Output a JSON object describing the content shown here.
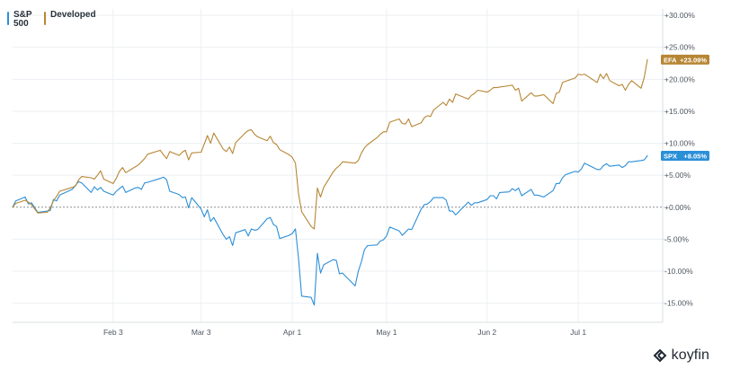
{
  "legend": {
    "spx_label": "S&P 500",
    "efa_label": "Developed"
  },
  "brand": {
    "name": "koyfin"
  },
  "colors": {
    "spx": "#2b8fd8",
    "efa": "#b78634",
    "grid": "#eceff2",
    "axis": "#d9dde2",
    "zero": "#8c8f93",
    "text": "#4d5661"
  },
  "chart_data": {
    "type": "line",
    "title": "",
    "xlabel": "",
    "ylabel": "",
    "x_ticks": [
      "Feb 3",
      "Mar 3",
      "Apr 1",
      "May 1",
      "Jun 2",
      "Jul 1"
    ],
    "y_ticks": [
      "+30.00%",
      "+25.00%",
      "+20.00%",
      "+15.00%",
      "+10.00%",
      "+5.00%",
      "+0.00%",
      "-5.00%",
      "-10.00%",
      "-15.00%"
    ],
    "ylim": [
      -18,
      31
    ],
    "grid": true,
    "legend": "top-left",
    "series": [
      {
        "name": "S&P 500",
        "tag": "SPX",
        "end_label": "+8.05%",
        "color": "#2b8fd8",
        "points": [
          [
            "2025-01-02",
            0.0
          ],
          [
            "2025-01-03",
            1.0
          ],
          [
            "2025-01-06",
            1.6
          ],
          [
            "2025-01-07",
            0.5
          ],
          [
            "2025-01-08",
            0.7
          ],
          [
            "2025-01-10",
            -0.8
          ],
          [
            "2025-01-13",
            -0.6
          ],
          [
            "2025-01-14",
            -0.5
          ],
          [
            "2025-01-15",
            1.2
          ],
          [
            "2025-01-16",
            1.0
          ],
          [
            "2025-01-17",
            1.9
          ],
          [
            "2025-01-21",
            2.8
          ],
          [
            "2025-01-22",
            3.4
          ],
          [
            "2025-01-23",
            4.0
          ],
          [
            "2025-01-24",
            3.8
          ],
          [
            "2025-01-27",
            2.3
          ],
          [
            "2025-01-28",
            3.2
          ],
          [
            "2025-01-29",
            2.7
          ],
          [
            "2025-01-30",
            3.1
          ],
          [
            "2025-01-31",
            2.5
          ],
          [
            "2025-02-03",
            1.9
          ],
          [
            "2025-02-04",
            2.5
          ],
          [
            "2025-02-05",
            2.9
          ],
          [
            "2025-02-06",
            3.3
          ],
          [
            "2025-02-07",
            2.3
          ],
          [
            "2025-02-10",
            3.0
          ],
          [
            "2025-02-11",
            3.1
          ],
          [
            "2025-02-12",
            2.8
          ],
          [
            "2025-02-13",
            3.8
          ],
          [
            "2025-02-14",
            3.9
          ],
          [
            "2025-02-18",
            4.5
          ],
          [
            "2025-02-19",
            4.7
          ],
          [
            "2025-02-20",
            4.3
          ],
          [
            "2025-02-21",
            2.5
          ],
          [
            "2025-02-24",
            2.0
          ],
          [
            "2025-02-25",
            1.5
          ],
          [
            "2025-02-26",
            1.6
          ],
          [
            "2025-02-27",
            -0.1
          ],
          [
            "2025-02-28",
            1.5
          ],
          [
            "2025-03-03",
            -0.3
          ],
          [
            "2025-03-04",
            -1.5
          ],
          [
            "2025-03-05",
            -0.4
          ],
          [
            "2025-03-06",
            -2.2
          ],
          [
            "2025-03-07",
            -1.6
          ],
          [
            "2025-03-10",
            -4.3
          ],
          [
            "2025-03-11",
            -5.0
          ],
          [
            "2025-03-12",
            -4.6
          ],
          [
            "2025-03-13",
            -6.0
          ],
          [
            "2025-03-14",
            -4.0
          ],
          [
            "2025-03-17",
            -3.5
          ],
          [
            "2025-03-18",
            -4.5
          ],
          [
            "2025-03-19",
            -3.4
          ],
          [
            "2025-03-20",
            -3.6
          ],
          [
            "2025-03-21",
            -3.5
          ],
          [
            "2025-03-24",
            -1.8
          ],
          [
            "2025-03-25",
            -1.6
          ],
          [
            "2025-03-26",
            -2.7
          ],
          [
            "2025-03-27",
            -3.0
          ],
          [
            "2025-03-28",
            -4.9
          ],
          [
            "2025-03-31",
            -4.4
          ],
          [
            "2025-04-01",
            -4.1
          ],
          [
            "2025-04-02",
            -3.4
          ],
          [
            "2025-04-03",
            -8.0
          ],
          [
            "2025-04-04",
            -13.9
          ],
          [
            "2025-04-07",
            -14.1
          ],
          [
            "2025-04-08",
            -15.3
          ],
          [
            "2025-04-09",
            -7.2
          ],
          [
            "2025-04-10",
            -10.3
          ],
          [
            "2025-04-11",
            -9.0
          ],
          [
            "2025-04-14",
            -8.2
          ],
          [
            "2025-04-15",
            -8.3
          ],
          [
            "2025-04-16",
            -10.4
          ],
          [
            "2025-04-17",
            -10.3
          ],
          [
            "2025-04-21",
            -12.3
          ],
          [
            "2025-04-22",
            -10.0
          ],
          [
            "2025-04-23",
            -8.5
          ],
          [
            "2025-04-24",
            -6.6
          ],
          [
            "2025-04-25",
            -6.0
          ],
          [
            "2025-04-28",
            -5.9
          ],
          [
            "2025-04-29",
            -5.3
          ],
          [
            "2025-04-30",
            -5.1
          ],
          [
            "2025-05-01",
            -4.5
          ],
          [
            "2025-05-02",
            -3.1
          ],
          [
            "2025-05-05",
            -3.7
          ],
          [
            "2025-05-06",
            -4.4
          ],
          [
            "2025-05-07",
            -3.9
          ],
          [
            "2025-05-08",
            -3.4
          ],
          [
            "2025-05-09",
            -3.5
          ],
          [
            "2025-05-12",
            -0.3
          ],
          [
            "2025-05-13",
            0.4
          ],
          [
            "2025-05-14",
            0.5
          ],
          [
            "2025-05-15",
            0.9
          ],
          [
            "2025-05-16",
            1.5
          ],
          [
            "2025-05-19",
            1.5
          ],
          [
            "2025-05-20",
            1.1
          ],
          [
            "2025-05-21",
            -0.6
          ],
          [
            "2025-05-22",
            -0.6
          ],
          [
            "2025-05-23",
            -1.2
          ],
          [
            "2025-05-27",
            0.8
          ],
          [
            "2025-05-28",
            0.3
          ],
          [
            "2025-05-29",
            0.7
          ],
          [
            "2025-05-30",
            0.7
          ],
          [
            "2025-06-02",
            1.2
          ],
          [
            "2025-06-03",
            1.8
          ],
          [
            "2025-06-04",
            1.8
          ],
          [
            "2025-06-05",
            1.3
          ],
          [
            "2025-06-06",
            2.3
          ],
          [
            "2025-06-09",
            2.4
          ],
          [
            "2025-06-10",
            2.9
          ],
          [
            "2025-06-11",
            2.6
          ],
          [
            "2025-06-12",
            3.0
          ],
          [
            "2025-06-13",
            1.8
          ],
          [
            "2025-06-16",
            2.8
          ],
          [
            "2025-06-17",
            1.9
          ],
          [
            "2025-06-18",
            1.9
          ],
          [
            "2025-06-20",
            1.6
          ],
          [
            "2025-06-23",
            2.6
          ],
          [
            "2025-06-24",
            3.7
          ],
          [
            "2025-06-25",
            3.7
          ],
          [
            "2025-06-26",
            4.6
          ],
          [
            "2025-06-27",
            5.1
          ],
          [
            "2025-06-30",
            5.6
          ],
          [
            "2025-07-01",
            5.5
          ],
          [
            "2025-07-02",
            6.0
          ],
          [
            "2025-07-03",
            6.9
          ],
          [
            "2025-07-07",
            5.9
          ],
          [
            "2025-07-08",
            5.9
          ],
          [
            "2025-07-09",
            6.5
          ],
          [
            "2025-07-10",
            6.8
          ],
          [
            "2025-07-11",
            6.4
          ],
          [
            "2025-07-14",
            6.6
          ],
          [
            "2025-07-15",
            6.2
          ],
          [
            "2025-07-16",
            6.5
          ],
          [
            "2025-07-17",
            7.1
          ],
          [
            "2025-07-18",
            7.1
          ],
          [
            "2025-07-21",
            7.3
          ],
          [
            "2025-07-22",
            7.4
          ],
          [
            "2025-07-23",
            8.05
          ]
        ]
      },
      {
        "name": "Developed",
        "tag": "EFA",
        "end_label": "+23.09%",
        "color": "#b78634",
        "points": [
          [
            "2025-01-02",
            0.0
          ],
          [
            "2025-01-03",
            0.6
          ],
          [
            "2025-01-06",
            1.1
          ],
          [
            "2025-01-07",
            0.8
          ],
          [
            "2025-01-08",
            0.4
          ],
          [
            "2025-01-10",
            -0.9
          ],
          [
            "2025-01-13",
            -0.8
          ],
          [
            "2025-01-14",
            -0.1
          ],
          [
            "2025-01-15",
            1.0
          ],
          [
            "2025-01-16",
            1.7
          ],
          [
            "2025-01-17",
            2.5
          ],
          [
            "2025-01-21",
            3.1
          ],
          [
            "2025-01-22",
            3.3
          ],
          [
            "2025-01-23",
            4.3
          ],
          [
            "2025-01-24",
            4.8
          ],
          [
            "2025-01-27",
            4.6
          ],
          [
            "2025-01-28",
            4.4
          ],
          [
            "2025-01-29",
            5.0
          ],
          [
            "2025-01-30",
            5.7
          ],
          [
            "2025-01-31",
            4.4
          ],
          [
            "2025-02-03",
            3.7
          ],
          [
            "2025-02-04",
            4.5
          ],
          [
            "2025-02-05",
            5.6
          ],
          [
            "2025-02-06",
            6.2
          ],
          [
            "2025-02-07",
            5.4
          ],
          [
            "2025-02-10",
            6.3
          ],
          [
            "2025-02-11",
            6.6
          ],
          [
            "2025-02-12",
            7.1
          ],
          [
            "2025-02-13",
            7.6
          ],
          [
            "2025-02-14",
            8.3
          ],
          [
            "2025-02-18",
            8.9
          ],
          [
            "2025-02-19",
            8.2
          ],
          [
            "2025-02-20",
            7.6
          ],
          [
            "2025-02-21",
            8.7
          ],
          [
            "2025-02-24",
            8.1
          ],
          [
            "2025-02-25",
            8.6
          ],
          [
            "2025-02-26",
            8.9
          ],
          [
            "2025-02-27",
            7.4
          ],
          [
            "2025-02-28",
            8.5
          ],
          [
            "2025-03-03",
            8.6
          ],
          [
            "2025-03-04",
            9.9
          ],
          [
            "2025-03-05",
            11.2
          ],
          [
            "2025-03-06",
            10.0
          ],
          [
            "2025-03-07",
            11.6
          ],
          [
            "2025-03-10",
            9.1
          ],
          [
            "2025-03-11",
            8.7
          ],
          [
            "2025-03-12",
            9.4
          ],
          [
            "2025-03-13",
            8.4
          ],
          [
            "2025-03-14",
            10.1
          ],
          [
            "2025-03-17",
            11.6
          ],
          [
            "2025-03-18",
            12.0
          ],
          [
            "2025-03-19",
            12.1
          ],
          [
            "2025-03-20",
            11.4
          ],
          [
            "2025-03-21",
            11.0
          ],
          [
            "2025-03-24",
            10.4
          ],
          [
            "2025-03-25",
            11.1
          ],
          [
            "2025-03-26",
            10.1
          ],
          [
            "2025-03-27",
            9.8
          ],
          [
            "2025-03-28",
            9.0
          ],
          [
            "2025-03-31",
            8.2
          ],
          [
            "2025-04-01",
            7.8
          ],
          [
            "2025-04-02",
            6.9
          ],
          [
            "2025-04-03",
            2.1
          ],
          [
            "2025-04-04",
            -0.7
          ],
          [
            "2025-04-07",
            -3.0
          ],
          [
            "2025-04-08",
            -3.4
          ],
          [
            "2025-04-09",
            3.0
          ],
          [
            "2025-04-10",
            1.6
          ],
          [
            "2025-04-11",
            3.1
          ],
          [
            "2025-04-14",
            5.5
          ],
          [
            "2025-04-15",
            6.1
          ],
          [
            "2025-04-16",
            6.5
          ],
          [
            "2025-04-17",
            7.1
          ],
          [
            "2025-04-21",
            6.9
          ],
          [
            "2025-04-22",
            7.3
          ],
          [
            "2025-04-23",
            8.5
          ],
          [
            "2025-04-24",
            9.3
          ],
          [
            "2025-04-25",
            9.8
          ],
          [
            "2025-04-28",
            10.9
          ],
          [
            "2025-04-29",
            11.4
          ],
          [
            "2025-04-30",
            11.8
          ],
          [
            "2025-05-01",
            11.8
          ],
          [
            "2025-05-02",
            13.3
          ],
          [
            "2025-05-05",
            13.8
          ],
          [
            "2025-05-06",
            13.1
          ],
          [
            "2025-05-07",
            13.0
          ],
          [
            "2025-05-08",
            13.8
          ],
          [
            "2025-05-09",
            12.6
          ],
          [
            "2025-05-12",
            13.2
          ],
          [
            "2025-05-13",
            14.0
          ],
          [
            "2025-05-14",
            14.3
          ],
          [
            "2025-05-15",
            14.2
          ],
          [
            "2025-05-16",
            15.2
          ],
          [
            "2025-05-19",
            16.4
          ],
          [
            "2025-05-20",
            15.9
          ],
          [
            "2025-05-21",
            16.9
          ],
          [
            "2025-05-22",
            16.4
          ],
          [
            "2025-05-23",
            17.7
          ],
          [
            "2025-05-27",
            16.9
          ],
          [
            "2025-05-28",
            17.5
          ],
          [
            "2025-05-29",
            17.8
          ],
          [
            "2025-05-30",
            18.3
          ],
          [
            "2025-06-02",
            18.0
          ],
          [
            "2025-06-03",
            18.3
          ],
          [
            "2025-06-04",
            18.7
          ],
          [
            "2025-06-05",
            18.7
          ],
          [
            "2025-06-06",
            18.8
          ],
          [
            "2025-06-09",
            19.0
          ],
          [
            "2025-06-10",
            19.1
          ],
          [
            "2025-06-11",
            18.3
          ],
          [
            "2025-06-12",
            18.6
          ],
          [
            "2025-06-13",
            16.6
          ],
          [
            "2025-06-16",
            17.9
          ],
          [
            "2025-06-17",
            17.4
          ],
          [
            "2025-06-18",
            17.4
          ],
          [
            "2025-06-20",
            17.6
          ],
          [
            "2025-06-23",
            16.2
          ],
          [
            "2025-06-24",
            17.8
          ],
          [
            "2025-06-25",
            18.0
          ],
          [
            "2025-06-26",
            19.5
          ],
          [
            "2025-06-27",
            19.7
          ],
          [
            "2025-06-30",
            20.2
          ],
          [
            "2025-07-01",
            20.8
          ],
          [
            "2025-07-02",
            20.7
          ],
          [
            "2025-07-03",
            20.8
          ],
          [
            "2025-07-07",
            19.5
          ],
          [
            "2025-07-08",
            20.8
          ],
          [
            "2025-07-09",
            20.1
          ],
          [
            "2025-07-10",
            20.9
          ],
          [
            "2025-07-11",
            19.8
          ],
          [
            "2025-07-14",
            19.0
          ],
          [
            "2025-07-15",
            19.2
          ],
          [
            "2025-07-16",
            18.3
          ],
          [
            "2025-07-17",
            19.2
          ],
          [
            "2025-07-18",
            19.8
          ],
          [
            "2025-07-21",
            18.6
          ],
          [
            "2025-07-22",
            20.3
          ],
          [
            "2025-07-23",
            23.09
          ]
        ]
      }
    ]
  }
}
